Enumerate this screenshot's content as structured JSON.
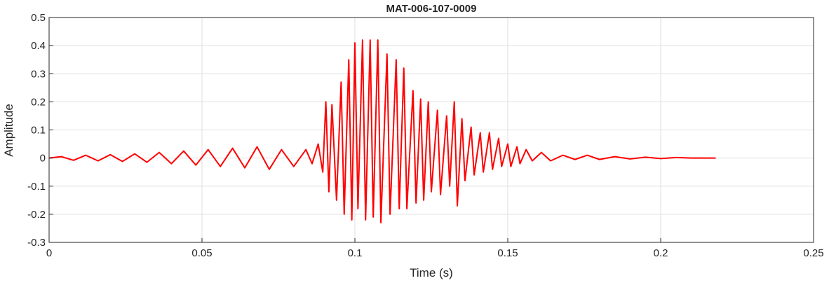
{
  "chart_data": {
    "type": "line",
    "title": "MAT-006-107-0009",
    "x_label": "Time (s)",
    "y_label": "Amplitude",
    "xlim": [
      0,
      0.25
    ],
    "ylim": [
      -0.3,
      0.5
    ],
    "xticks": [
      0,
      0.05,
      0.1,
      0.15,
      0.2,
      0.25
    ],
    "yticks": [
      -0.3,
      -0.2,
      -0.1,
      0,
      0.1,
      0.2,
      0.3,
      0.4,
      0.5
    ],
    "grid": true,
    "series": [
      {
        "color": "#ff0000",
        "x": [
          0,
          0.004,
          0.008,
          0.012,
          0.016,
          0.02,
          0.024,
          0.028,
          0.032,
          0.036,
          0.04,
          0.044,
          0.048,
          0.052,
          0.056,
          0.06,
          0.064,
          0.068,
          0.072,
          0.076,
          0.08,
          0.084,
          0.086,
          0.088,
          0.0895,
          0.0905,
          0.0915,
          0.0925,
          0.094,
          0.0955,
          0.0965,
          0.098,
          0.099,
          0.1,
          0.101,
          0.1025,
          0.1035,
          0.105,
          0.106,
          0.1075,
          0.1085,
          0.1105,
          0.1115,
          0.1135,
          0.1145,
          0.116,
          0.117,
          0.119,
          0.12,
          0.1215,
          0.1225,
          0.124,
          0.125,
          0.127,
          0.128,
          0.13,
          0.131,
          0.1325,
          0.1335,
          0.135,
          0.136,
          0.138,
          0.139,
          0.141,
          0.142,
          0.144,
          0.145,
          0.147,
          0.148,
          0.15,
          0.151,
          0.153,
          0.154,
          0.156,
          0.158,
          0.161,
          0.164,
          0.168,
          0.172,
          0.176,
          0.18,
          0.185,
          0.19,
          0.195,
          0.2,
          0.205,
          0.21,
          0.218
        ],
        "values": [
          0,
          0.005,
          -0.008,
          0.01,
          -0.01,
          0.012,
          -0.012,
          0.015,
          -0.015,
          0.02,
          -0.02,
          0.025,
          -0.025,
          0.03,
          -0.03,
          0.035,
          -0.035,
          0.04,
          -0.04,
          0.03,
          -0.03,
          0.03,
          -0.02,
          0.05,
          -0.05,
          0.2,
          -0.12,
          0.19,
          -0.15,
          0.27,
          -0.2,
          0.35,
          -0.22,
          0.41,
          -0.18,
          0.42,
          -0.22,
          0.42,
          -0.21,
          0.42,
          -0.23,
          0.37,
          -0.2,
          0.35,
          -0.18,
          0.32,
          -0.18,
          0.24,
          -0.16,
          0.21,
          -0.15,
          0.2,
          -0.12,
          0.17,
          -0.13,
          0.15,
          -0.1,
          0.2,
          -0.17,
          0.14,
          -0.08,
          0.11,
          -0.06,
          0.09,
          -0.05,
          0.09,
          -0.04,
          0.07,
          -0.03,
          0.05,
          -0.03,
          0.04,
          -0.02,
          0.03,
          -0.01,
          0.02,
          -0.01,
          0.01,
          -0.005,
          0.01,
          -0.005,
          0.005,
          -0.003,
          0.003,
          -0.002,
          0.002,
          0,
          0
        ]
      }
    ]
  }
}
